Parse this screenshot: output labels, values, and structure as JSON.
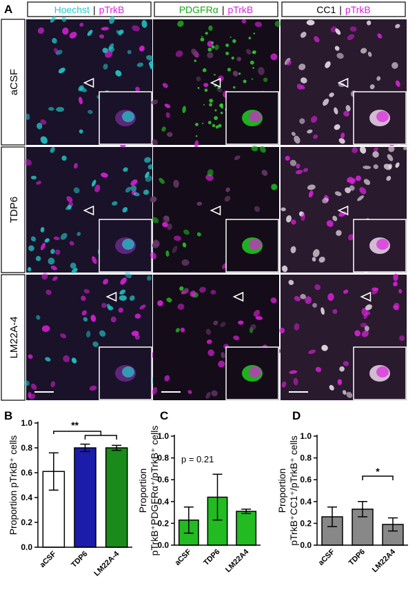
{
  "figure": {
    "panel_labels": [
      "A",
      "B",
      "C",
      "D"
    ],
    "separator": "|",
    "columns": [
      {
        "stain": "Hoechst",
        "marker": "pTrkB"
      },
      {
        "stain": "PDGFRα",
        "marker": "pTrkB"
      },
      {
        "stain": "CC1",
        "marker": "pTrkB"
      }
    ],
    "rows": [
      "aCSF",
      "TDP6",
      "LM22A-4"
    ]
  },
  "chart_data": [
    {
      "type": "bar",
      "ylabel": [
        "Proportion pTrkB⁺ cells"
      ],
      "categories": [
        "aCSF",
        "TDP6",
        "LM22A-4"
      ],
      "values": [
        0.61,
        0.8,
        0.8
      ],
      "errors": [
        0.15,
        0.03,
        0.02
      ],
      "colors": [
        "#ffffff",
        "#1c1caa",
        "#1a8a1a"
      ],
      "ylim": [
        0,
        1.0
      ],
      "yticks": [
        {
          "value": 0,
          "label": "0.0"
        },
        0.2,
        0.4,
        0.6,
        0.8,
        {
          "value": 1.0,
          "label": "1.0"
        }
      ],
      "annotation": "**"
    },
    {
      "type": "bar",
      "ylabel": [
        "Proportion",
        "pTrkB⁺PDGFRα⁺/pTrkB⁺ cells"
      ],
      "categories": [
        "aCSF",
        "TDP6",
        "LM22A4"
      ],
      "values": [
        0.23,
        0.44,
        0.31
      ],
      "errors": [
        0.12,
        0.21,
        0.02
      ],
      "colors": [
        "#22bb22",
        "#22bb22",
        "#22bb22"
      ],
      "ylim": [
        0,
        1.0
      ],
      "yticks": [
        {
          "value": 0,
          "label": "0.0"
        },
        0.2,
        0.4,
        0.6,
        0.8,
        {
          "value": 1.0,
          "label": "1.0"
        }
      ],
      "annotation": "p = 0.21"
    },
    {
      "type": "bar",
      "ylabel": [
        "Proportion",
        "pTrkB⁺CC1⁺/pTrkB⁺ cells"
      ],
      "categories": [
        "aCSF",
        "TDP6",
        "LM22A4"
      ],
      "values": [
        0.26,
        0.33,
        0.19
      ],
      "errors": [
        0.09,
        0.07,
        0.06
      ],
      "colors": [
        "#888888",
        "#888888",
        "#888888"
      ],
      "ylim": [
        0,
        1.0
      ],
      "yticks": [
        {
          "value": 0,
          "label": "0.0"
        },
        0.2,
        0.4,
        0.6,
        0.8,
        {
          "value": 1.0,
          "label": "1.0"
        }
      ],
      "annotation": "*"
    }
  ]
}
